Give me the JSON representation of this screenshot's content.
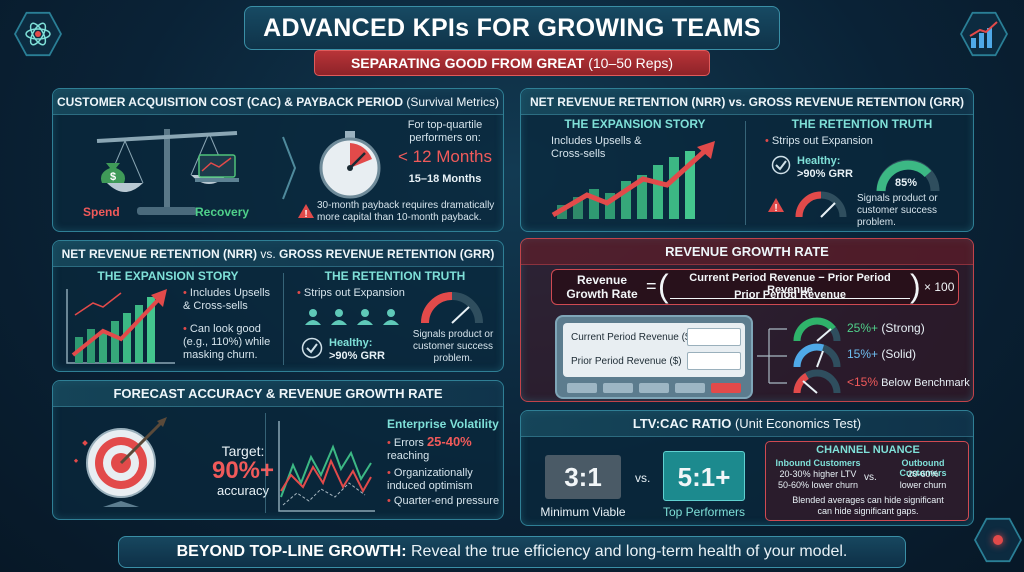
{
  "header": {
    "title": "ADVANCED KPIs FOR GROWING TEAMS",
    "subtitle_main": "SEPARATING GOOD FROM GREAT",
    "subtitle_range": "(10–50 Reps)"
  },
  "cac": {
    "title_bold": "CUSTOMER ACQUISITION COST (CAC) & PAYBACK PERIOD",
    "title_light": "(Survival Metrics)",
    "spend_label": "Spend",
    "recovery_label": "Recovery",
    "top_text": "For top-quartile performers on:",
    "target": "< 12 Months",
    "alt": "15–18 Months",
    "warning": "30-month payback requires dramatically more capital than 10-month payback."
  },
  "nrr_top": {
    "title": "NET REVENUE RETENTION (NRR) vs. GROSS REVENUE RETENTION (GRR)",
    "expansion_title": "THE EXPANSION STORY",
    "expansion_text": "Includes Upsells & Cross-sells",
    "retention_title": "THE RETENTION TRUTH",
    "retention_text": "Strips out Expansion",
    "healthy_label": "Healthy:",
    "healthy_value": ">90% GRR",
    "gauge_value": "85%",
    "signal_text": "Signals product or customer success problem."
  },
  "nrr_left": {
    "title_bold1": "NET REVENUE RETENTION (NRR)",
    "title_vs": "vs.",
    "title_bold2": "GROSS REVENUE RETENTION (GRR)",
    "expansion_title": "THE EXPANSION STORY",
    "bullet1": "Includes Upsells & Cross-sells",
    "bullet2": "Can look good (e.g., 110%) while masking churn.",
    "retention_title": "THE RETENTION TRUTH",
    "retention_bullet": "Strips out Expansion",
    "healthy_label": "Healthy:",
    "healthy_value": ">90% GRR",
    "signal_text": "Signals product or customer success problem."
  },
  "rgr": {
    "title": "REVENUE GROWTH RATE",
    "formula_label": "Revenue Growth Rate",
    "numerator": "Current Period Revenue − Prior Period Revenue",
    "denominator": "Prior Period Revenue",
    "multiplier": "× 100",
    "field1_label": "Current Period Revenue ($)",
    "field2_label": "Prior Period Revenue ($)",
    "bench_strong_value": "25%+",
    "bench_strong_label": "(Strong)",
    "bench_solid_value": "15%+",
    "bench_solid_label": "(Solid)",
    "bench_low_value": "<15%",
    "bench_low_label": "Below Benchmark",
    "colors": {
      "strong": "#2fb36a",
      "solid": "#4fa9e8",
      "low": "#e24a4a"
    }
  },
  "forecast": {
    "title": "FORECAST ACCURACY & REVENUE GROWTH RATE",
    "target_label": "Target:",
    "target_value": "90%+",
    "target_suffix": "accuracy",
    "volatility_title": "Enterprise Volatility",
    "bullet1_pre": "Errors",
    "bullet1_value": "25-40%",
    "bullet1_post": "reaching",
    "bullet2": "Organizationally induced optimism",
    "bullet3": "Quarter-end pressure"
  },
  "ltv": {
    "title_bold": "LTV:CAC RATIO",
    "title_light": "(Unit Economics Test)",
    "min_value": "3:1",
    "min_label": "Minimum Viable",
    "vs": "vs.",
    "top_value": "5:1+",
    "top_label": "Top Performers",
    "nuance_title": "CHANNEL NUANCE",
    "inbound_title": "Inbound Customers",
    "inbound_l1": "20-30% higher LTV",
    "inbound_l2": "50-60% lower churn",
    "nuance_vs": "vs.",
    "outbound_title": "Outbound Customers",
    "outbound_l1": "20-60%",
    "outbound_l2": "lower churn",
    "note_l1": "Blended averages can hide significant",
    "note_l2": "can hide significant gaps."
  },
  "footer": {
    "bold": "BEYOND TOP-LINE GROWTH:",
    "text": "Reveal the true efficiency and long-term health of your model."
  },
  "icons": [
    "atom-icon",
    "growth-chart-icon",
    "scale-icon",
    "money-bag-icon",
    "laptop-icon",
    "stopwatch-icon",
    "warning-icon",
    "trend-up-chart-icon",
    "check-icon",
    "gauge-icon",
    "people-icon",
    "target-icon",
    "line-chart-icon",
    "calculator-icon"
  ]
}
